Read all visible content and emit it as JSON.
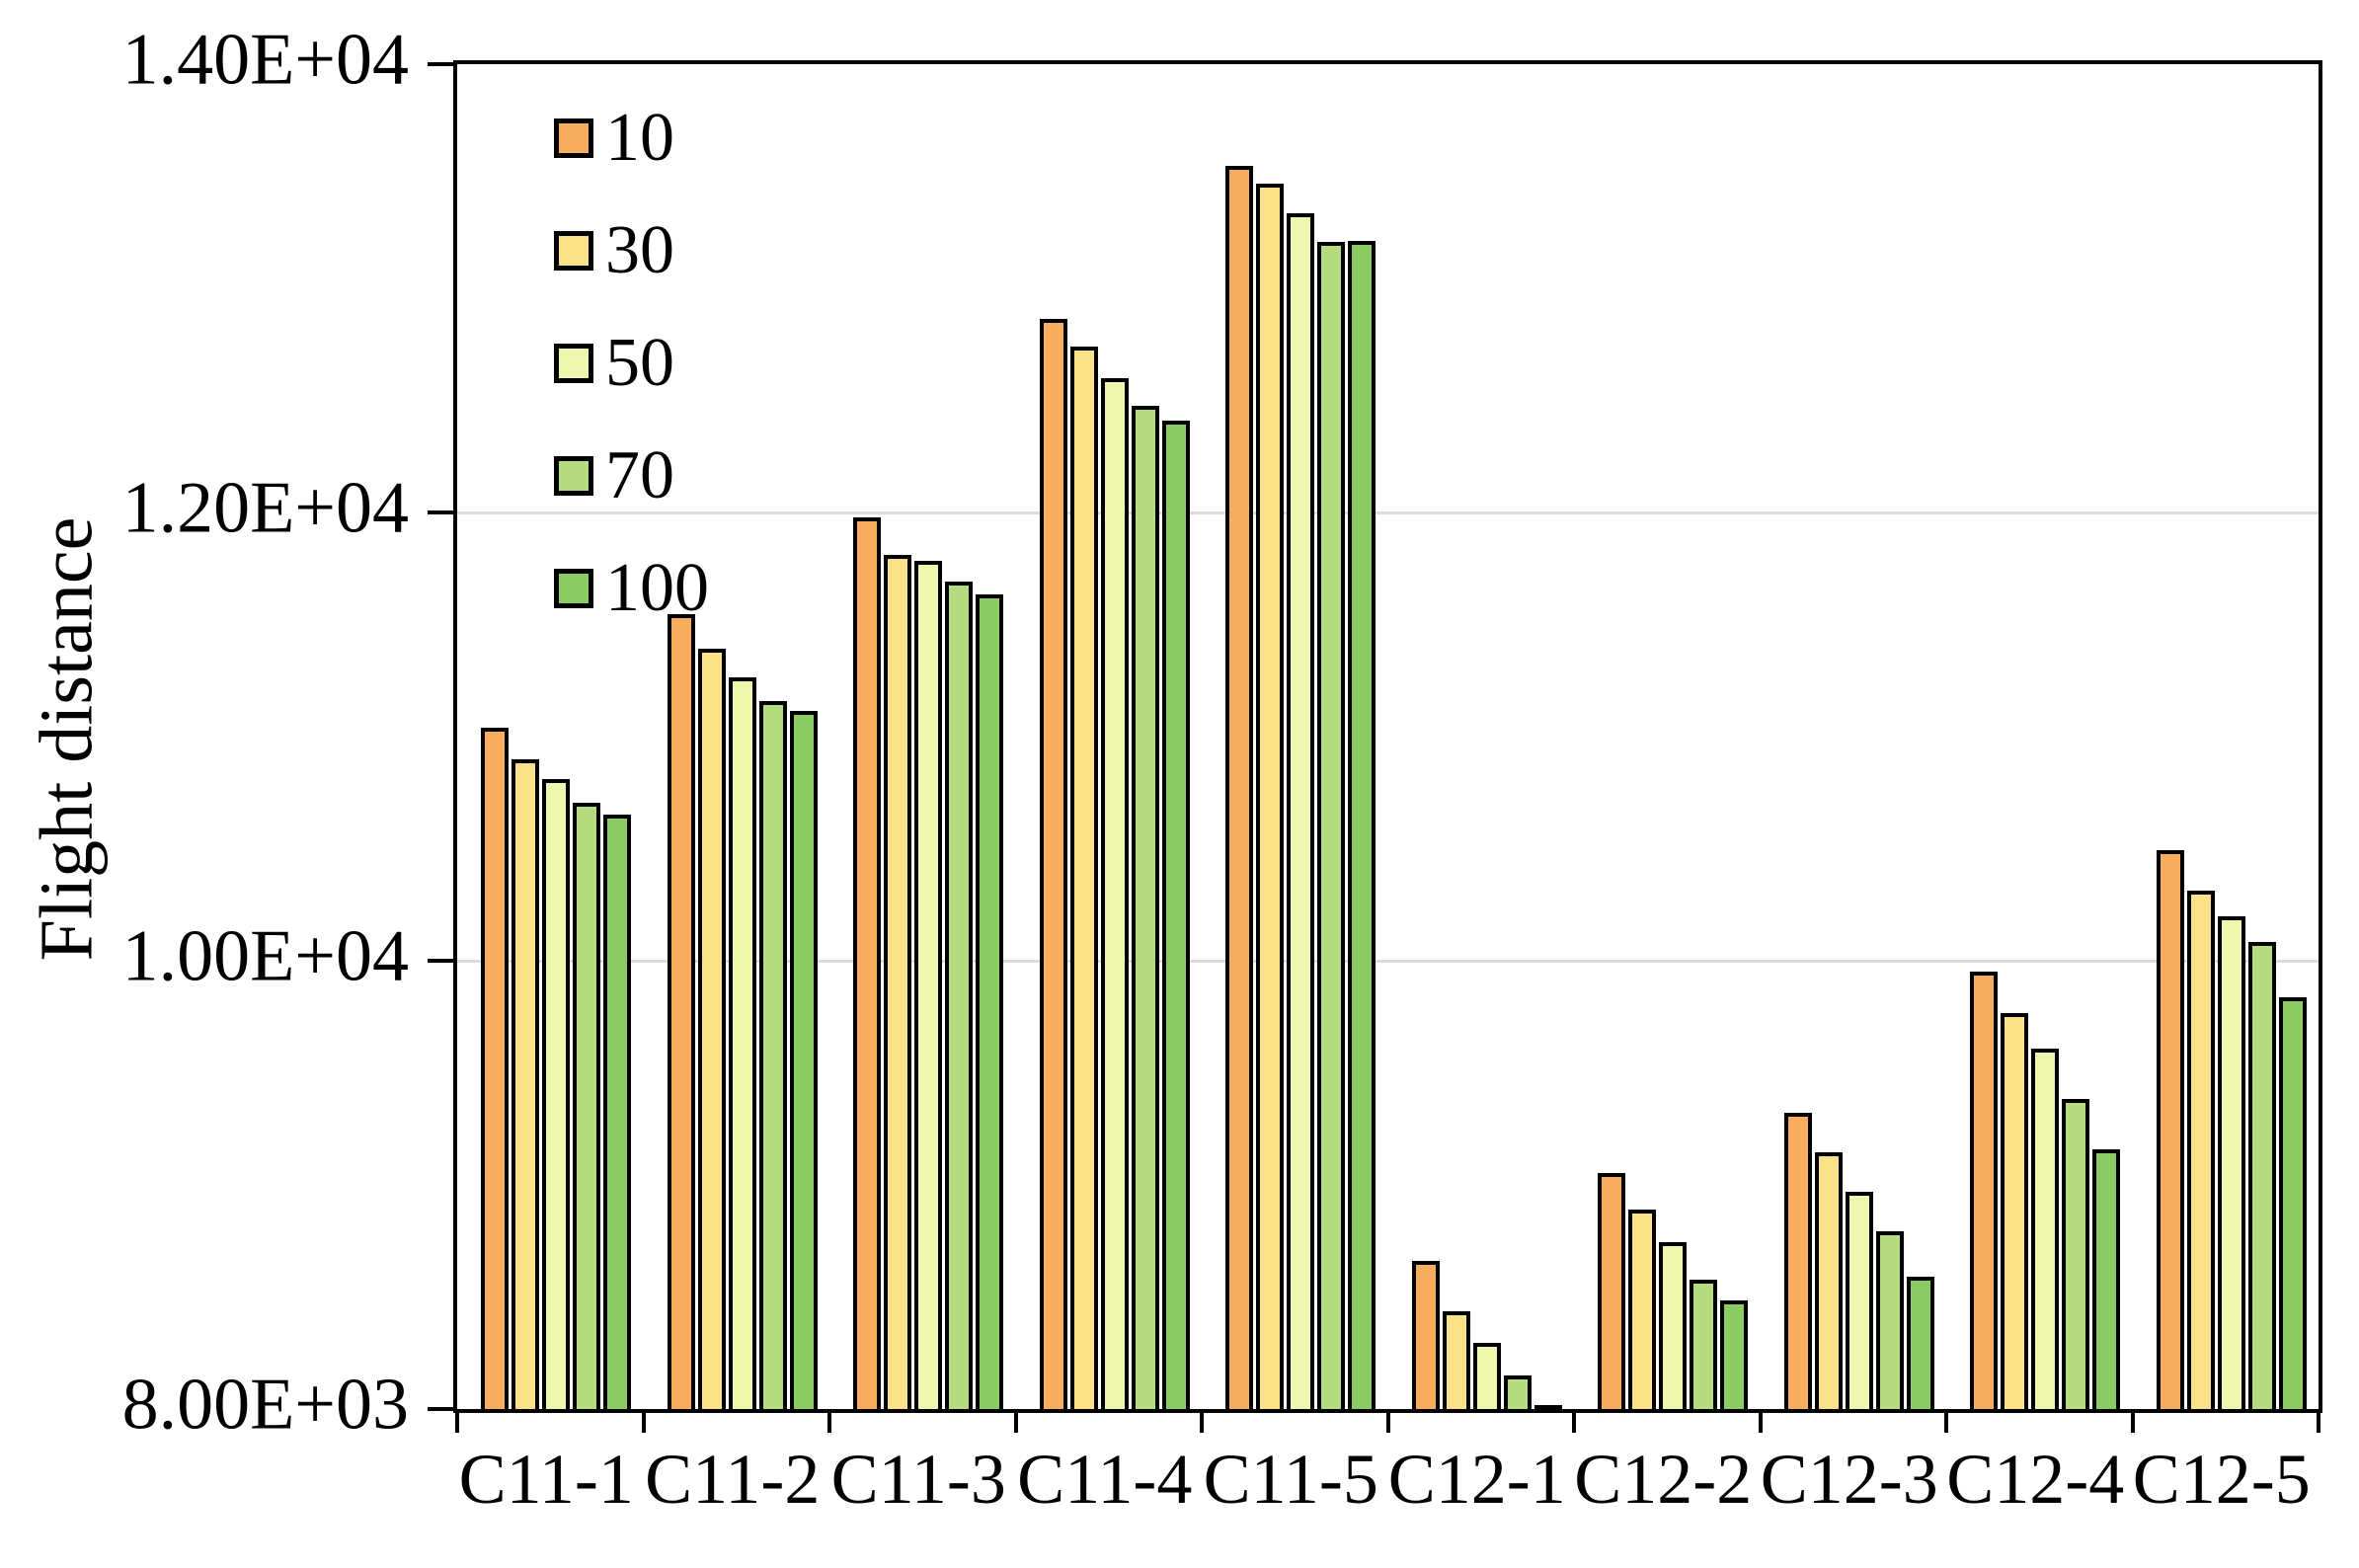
{
  "chart_data": {
    "type": "bar",
    "title": "",
    "xlabel": "",
    "ylabel": "Flight distance",
    "ylim": [
      8000,
      14000
    ],
    "grid": "horizontal-on",
    "gridline_color": "#DCDCDC",
    "bar_outline_color": "#000000",
    "legend_position": "inside-top-left",
    "yticks": [
      {
        "value": 14000,
        "label": "1.40E+04"
      },
      {
        "value": 12000,
        "label": "1.20E+04"
      },
      {
        "value": 10000,
        "label": "1.00E+04"
      },
      {
        "value": 8000,
        "label": "8.00E+03"
      }
    ],
    "gridlines": [
      12000,
      10000
    ],
    "categories": [
      "C11-1",
      "C11-2",
      "C11-3",
      "C11-4",
      "C11-5",
      "C12-1",
      "C12-2",
      "C12-3",
      "C12-4",
      "C12-5"
    ],
    "series": [
      {
        "name": "10",
        "color": "#F7AC5E",
        "values": [
          11040,
          11545,
          11980,
          12865,
          13545,
          8660,
          9055,
          9320,
          9950,
          10495
        ]
      },
      {
        "name": "30",
        "color": "#FBE188",
        "values": [
          10900,
          11390,
          11810,
          12740,
          13465,
          8435,
          8890,
          9145,
          9765,
          10315
        ]
      },
      {
        "name": "50",
        "color": "#EEF7AD",
        "values": [
          10810,
          11265,
          11785,
          12600,
          13335,
          8295,
          8745,
          8970,
          9610,
          10200
        ]
      },
      {
        "name": "70",
        "color": "#B5DC7E",
        "values": [
          10705,
          11160,
          11690,
          12475,
          13205,
          8150,
          8575,
          8795,
          9385,
          10085
        ]
      },
      {
        "name": "100",
        "color": "#8CCB61",
        "values": [
          10650,
          11115,
          11635,
          12410,
          13210,
          8010,
          8485,
          8590,
          9160,
          9835
        ]
      }
    ]
  }
}
